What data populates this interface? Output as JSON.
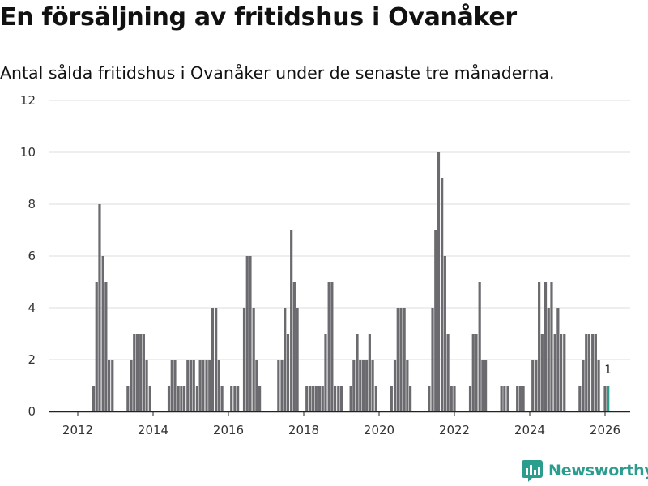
{
  "title": "En försäljning av fritidshus i Ovanåker",
  "subtitle": "Antal sålda fritidshus i Ovanåker under de senaste tre månaderna.",
  "brand": {
    "name": "Newsworthy",
    "color": "#2a9d8f",
    "icon": "bar-chart-logo-icon"
  },
  "chart_data": {
    "type": "bar",
    "title": "En försäljning av fritidshus i Ovanåker",
    "xlabel": "",
    "ylabel": "",
    "ylim": [
      0,
      12
    ],
    "yticks": [
      0,
      2,
      4,
      6,
      8,
      10,
      12
    ],
    "xticks": [
      2012,
      2014,
      2016,
      2018,
      2020,
      2022,
      2024,
      2026
    ],
    "x_unit": "year (monthly bars)",
    "bar_color": "#6b6b6f",
    "highlight_color": "#2a9d8f",
    "highlight_label": "1",
    "series": [
      {
        "name": "Antal sålda fritidshus",
        "points": [
          {
            "x": 2012.42,
            "y": 1
          },
          {
            "x": 2012.5,
            "y": 5
          },
          {
            "x": 2012.58,
            "y": 8
          },
          {
            "x": 2012.67,
            "y": 6
          },
          {
            "x": 2012.75,
            "y": 5
          },
          {
            "x": 2012.83,
            "y": 2
          },
          {
            "x": 2012.92,
            "y": 2
          },
          {
            "x": 2013.33,
            "y": 1
          },
          {
            "x": 2013.42,
            "y": 2
          },
          {
            "x": 2013.5,
            "y": 3
          },
          {
            "x": 2013.58,
            "y": 3
          },
          {
            "x": 2013.67,
            "y": 3
          },
          {
            "x": 2013.75,
            "y": 3
          },
          {
            "x": 2013.83,
            "y": 2
          },
          {
            "x": 2013.92,
            "y": 1
          },
          {
            "x": 2014.42,
            "y": 1
          },
          {
            "x": 2014.5,
            "y": 2
          },
          {
            "x": 2014.58,
            "y": 2
          },
          {
            "x": 2014.67,
            "y": 1
          },
          {
            "x": 2014.75,
            "y": 1
          },
          {
            "x": 2014.83,
            "y": 1
          },
          {
            "x": 2014.92,
            "y": 2
          },
          {
            "x": 2015.0,
            "y": 2
          },
          {
            "x": 2015.08,
            "y": 2
          },
          {
            "x": 2015.17,
            "y": 1
          },
          {
            "x": 2015.25,
            "y": 2
          },
          {
            "x": 2015.33,
            "y": 2
          },
          {
            "x": 2015.42,
            "y": 2
          },
          {
            "x": 2015.5,
            "y": 2
          },
          {
            "x": 2015.58,
            "y": 4
          },
          {
            "x": 2015.67,
            "y": 4
          },
          {
            "x": 2015.75,
            "y": 2
          },
          {
            "x": 2015.83,
            "y": 1
          },
          {
            "x": 2016.08,
            "y": 1
          },
          {
            "x": 2016.17,
            "y": 1
          },
          {
            "x": 2016.25,
            "y": 1
          },
          {
            "x": 2016.42,
            "y": 4
          },
          {
            "x": 2016.5,
            "y": 6
          },
          {
            "x": 2016.58,
            "y": 6
          },
          {
            "x": 2016.67,
            "y": 4
          },
          {
            "x": 2016.75,
            "y": 2
          },
          {
            "x": 2016.83,
            "y": 1
          },
          {
            "x": 2017.33,
            "y": 2
          },
          {
            "x": 2017.42,
            "y": 2
          },
          {
            "x": 2017.5,
            "y": 4
          },
          {
            "x": 2017.58,
            "y": 3
          },
          {
            "x": 2017.67,
            "y": 7
          },
          {
            "x": 2017.75,
            "y": 5
          },
          {
            "x": 2017.83,
            "y": 4
          },
          {
            "x": 2018.08,
            "y": 1
          },
          {
            "x": 2018.17,
            "y": 1
          },
          {
            "x": 2018.25,
            "y": 1
          },
          {
            "x": 2018.33,
            "y": 1
          },
          {
            "x": 2018.42,
            "y": 1
          },
          {
            "x": 2018.5,
            "y": 1
          },
          {
            "x": 2018.58,
            "y": 3
          },
          {
            "x": 2018.67,
            "y": 5
          },
          {
            "x": 2018.75,
            "y": 5
          },
          {
            "x": 2018.83,
            "y": 1
          },
          {
            "x": 2018.92,
            "y": 1
          },
          {
            "x": 2019.0,
            "y": 1
          },
          {
            "x": 2019.25,
            "y": 1
          },
          {
            "x": 2019.33,
            "y": 2
          },
          {
            "x": 2019.42,
            "y": 3
          },
          {
            "x": 2019.5,
            "y": 2
          },
          {
            "x": 2019.58,
            "y": 2
          },
          {
            "x": 2019.67,
            "y": 2
          },
          {
            "x": 2019.75,
            "y": 3
          },
          {
            "x": 2019.83,
            "y": 2
          },
          {
            "x": 2019.92,
            "y": 1
          },
          {
            "x": 2020.33,
            "y": 1
          },
          {
            "x": 2020.42,
            "y": 2
          },
          {
            "x": 2020.5,
            "y": 4
          },
          {
            "x": 2020.58,
            "y": 4
          },
          {
            "x": 2020.67,
            "y": 4
          },
          {
            "x": 2020.75,
            "y": 2
          },
          {
            "x": 2020.83,
            "y": 1
          },
          {
            "x": 2021.33,
            "y": 1
          },
          {
            "x": 2021.42,
            "y": 4
          },
          {
            "x": 2021.5,
            "y": 7
          },
          {
            "x": 2021.58,
            "y": 10
          },
          {
            "x": 2021.67,
            "y": 9
          },
          {
            "x": 2021.75,
            "y": 6
          },
          {
            "x": 2021.83,
            "y": 3
          },
          {
            "x": 2021.92,
            "y": 1
          },
          {
            "x": 2022.0,
            "y": 1
          },
          {
            "x": 2022.42,
            "y": 1
          },
          {
            "x": 2022.5,
            "y": 3
          },
          {
            "x": 2022.58,
            "y": 3
          },
          {
            "x": 2022.67,
            "y": 5
          },
          {
            "x": 2022.75,
            "y": 2
          },
          {
            "x": 2022.83,
            "y": 2
          },
          {
            "x": 2023.25,
            "y": 1
          },
          {
            "x": 2023.33,
            "y": 1
          },
          {
            "x": 2023.42,
            "y": 1
          },
          {
            "x": 2023.67,
            "y": 1
          },
          {
            "x": 2023.75,
            "y": 1
          },
          {
            "x": 2023.83,
            "y": 1
          },
          {
            "x": 2024.08,
            "y": 2
          },
          {
            "x": 2024.17,
            "y": 2
          },
          {
            "x": 2024.25,
            "y": 5
          },
          {
            "x": 2024.33,
            "y": 3
          },
          {
            "x": 2024.42,
            "y": 5
          },
          {
            "x": 2024.5,
            "y": 4
          },
          {
            "x": 2024.58,
            "y": 5
          },
          {
            "x": 2024.67,
            "y": 3
          },
          {
            "x": 2024.75,
            "y": 4
          },
          {
            "x": 2024.83,
            "y": 3
          },
          {
            "x": 2024.92,
            "y": 3
          },
          {
            "x": 2025.33,
            "y": 1
          },
          {
            "x": 2025.42,
            "y": 2
          },
          {
            "x": 2025.5,
            "y": 3
          },
          {
            "x": 2025.58,
            "y": 3
          },
          {
            "x": 2025.67,
            "y": 3
          },
          {
            "x": 2025.75,
            "y": 3
          },
          {
            "x": 2025.83,
            "y": 2
          },
          {
            "x": 2026.0,
            "y": 1
          },
          {
            "x": 2026.08,
            "y": 1,
            "highlight": true
          }
        ]
      }
    ]
  }
}
